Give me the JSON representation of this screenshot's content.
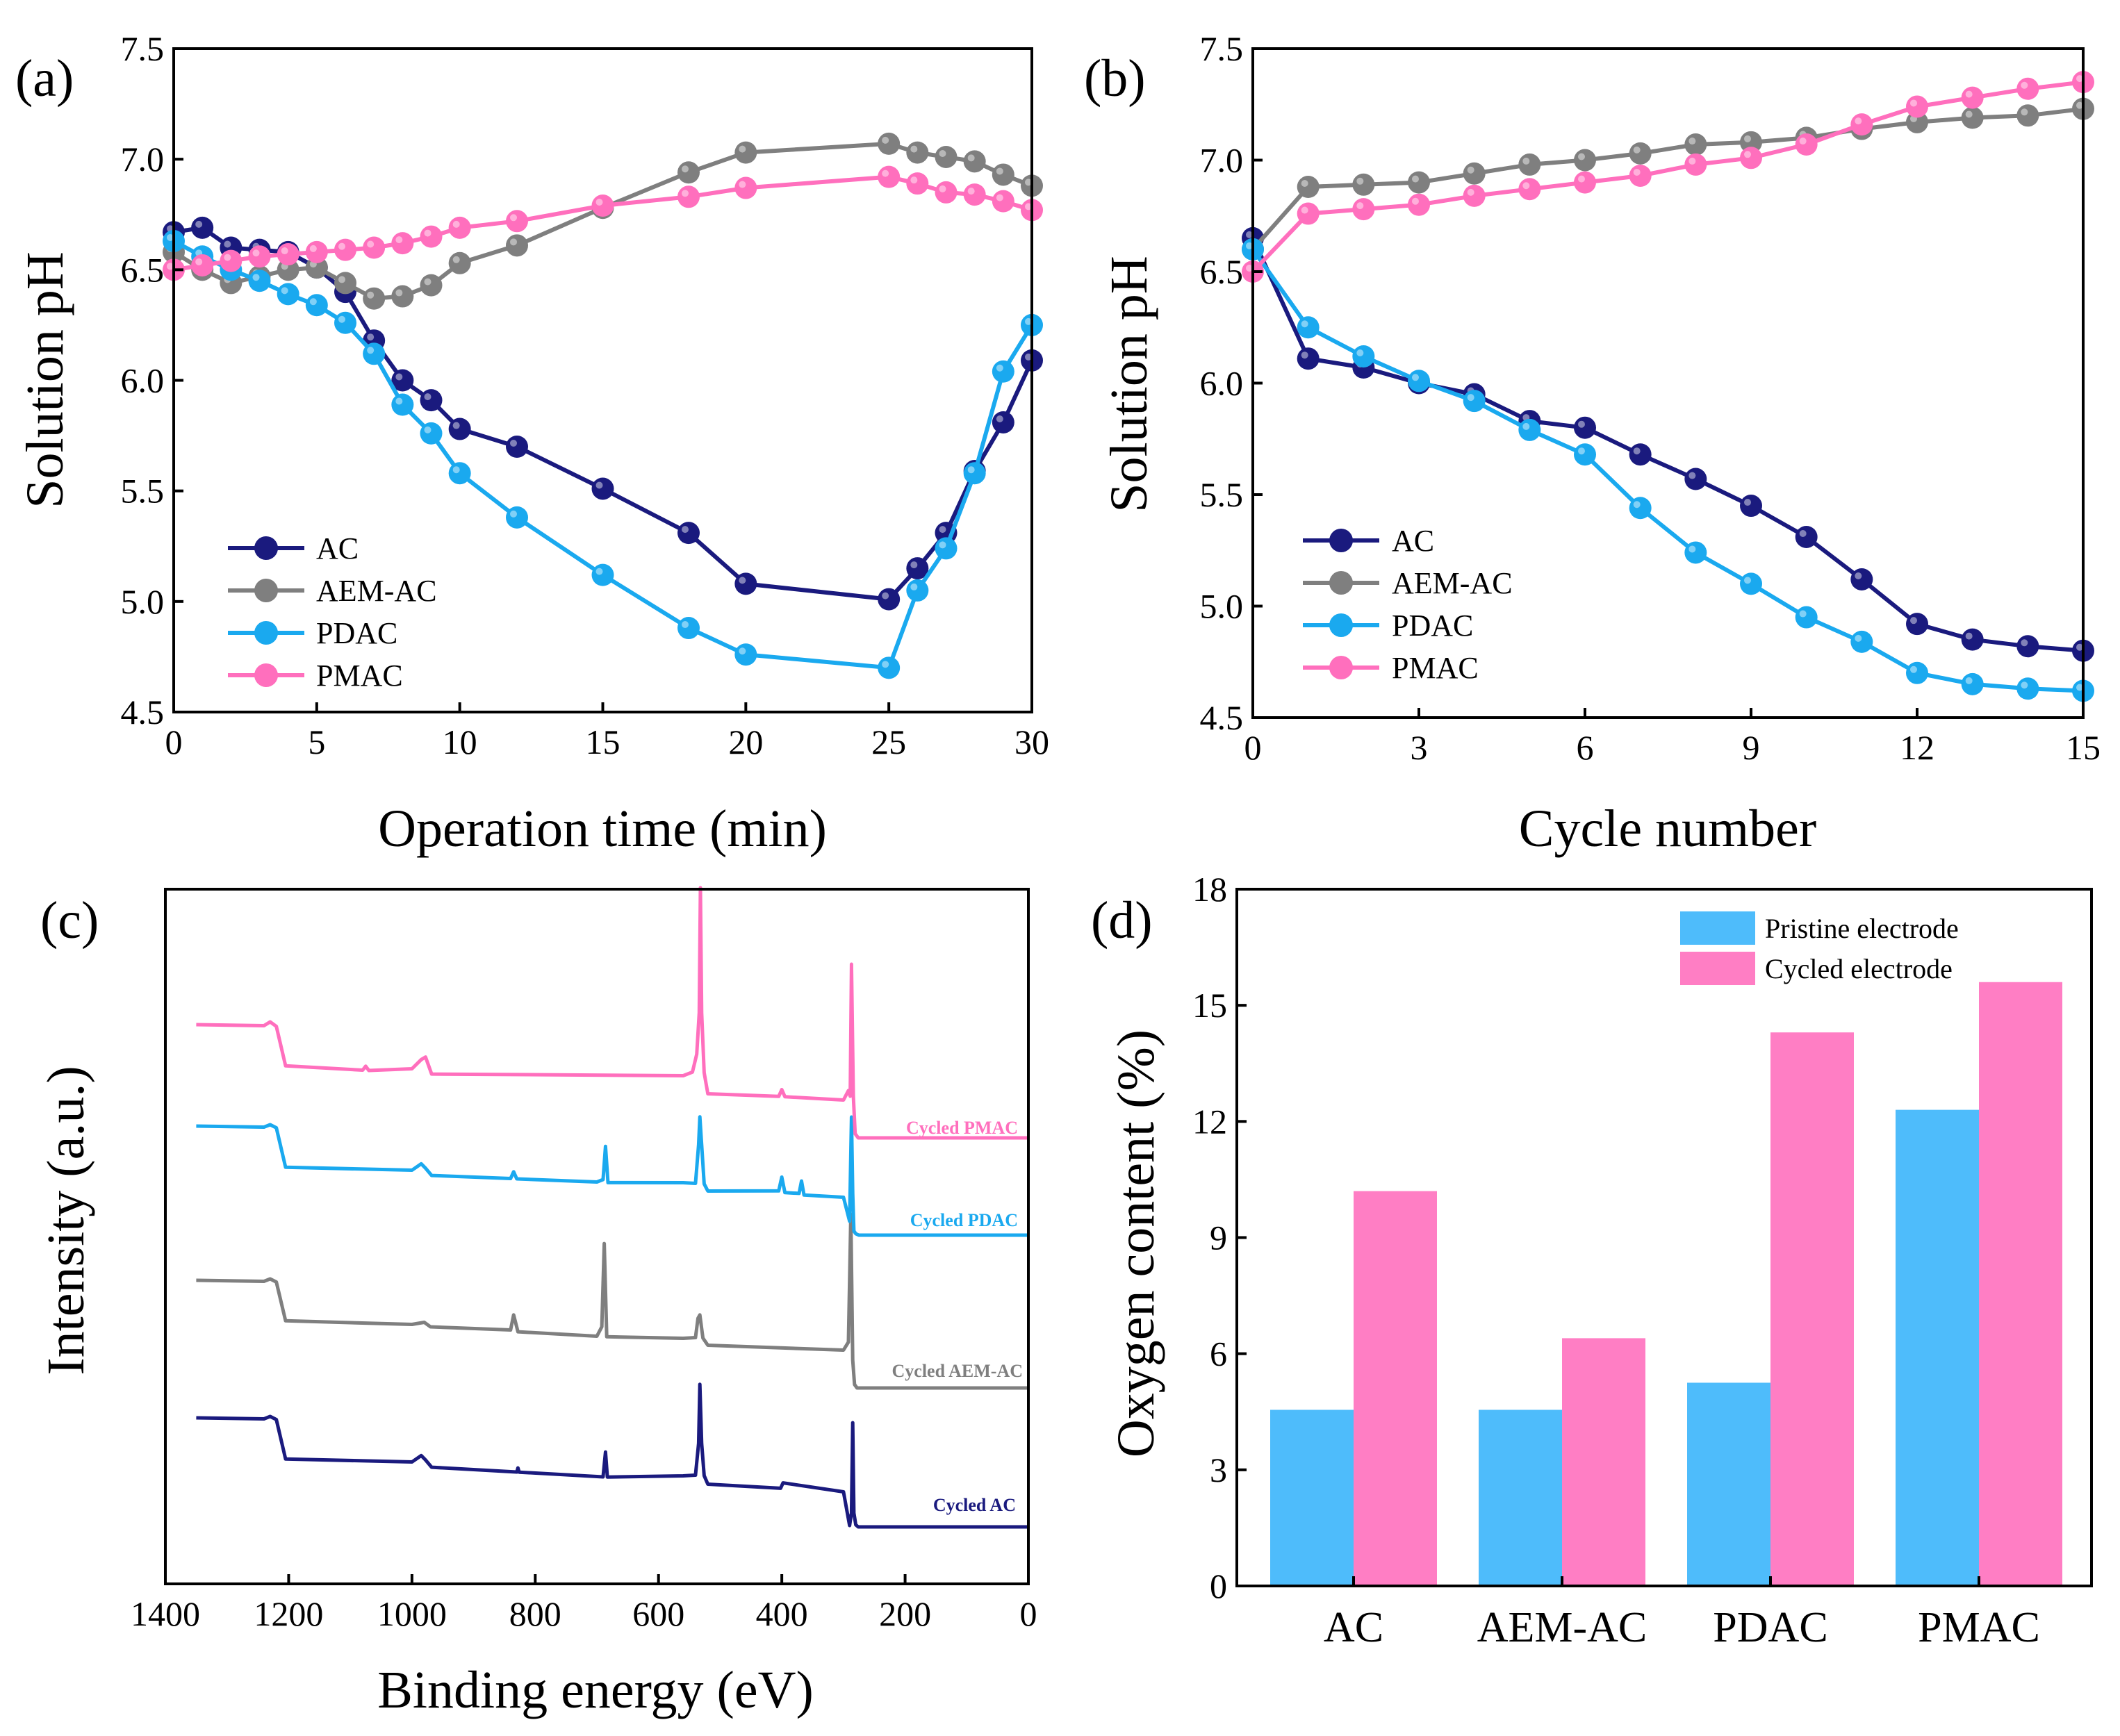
{
  "chart_data": [
    {
      "panel": "(a)",
      "type": "line",
      "xlabel": "Operation time (min)",
      "ylabel": "Solution pH",
      "xlim": [
        0,
        30
      ],
      "ylim": [
        4.5,
        7.5
      ],
      "xticks": [
        "0",
        "5",
        "10",
        "15",
        "20",
        "25",
        "30"
      ],
      "yticks": [
        "4.5",
        "5.0",
        "5.5",
        "6.0",
        "6.5",
        "7.0",
        "7.5"
      ],
      "legend_position": "bottom-left",
      "series": [
        {
          "name": "AC",
          "color": "#1a1a7e",
          "x": [
            0,
            1,
            2,
            3,
            4,
            5,
            6,
            7,
            8,
            9,
            10,
            12,
            15,
            18,
            20,
            25,
            26,
            27,
            28,
            29,
            30
          ],
          "y": [
            6.67,
            6.69,
            6.6,
            6.59,
            6.58,
            6.51,
            6.4,
            6.18,
            6.0,
            5.91,
            5.78,
            5.7,
            5.51,
            5.31,
            5.08,
            5.01,
            5.15,
            5.31,
            5.59,
            5.81,
            6.09
          ]
        },
        {
          "name": "AEM-AC",
          "color": "#7f7f7f",
          "x": [
            0,
            1,
            2,
            3,
            4,
            5,
            6,
            7,
            8,
            9,
            10,
            12,
            15,
            18,
            20,
            25,
            26,
            27,
            28,
            29,
            30
          ],
          "y": [
            6.58,
            6.5,
            6.44,
            6.47,
            6.5,
            6.51,
            6.44,
            6.37,
            6.38,
            6.43,
            6.53,
            6.61,
            6.78,
            6.94,
            7.03,
            7.07,
            7.03,
            7.01,
            6.99,
            6.93,
            6.88
          ]
        },
        {
          "name": "PDAC",
          "color": "#1aa9ef",
          "x": [
            0,
            1,
            2,
            3,
            4,
            5,
            6,
            7,
            8,
            9,
            10,
            12,
            15,
            18,
            20,
            25,
            26,
            27,
            28,
            29,
            30
          ],
          "y": [
            6.63,
            6.56,
            6.5,
            6.45,
            6.39,
            6.34,
            6.26,
            6.12,
            5.89,
            5.76,
            5.58,
            5.38,
            5.12,
            4.88,
            4.76,
            4.7,
            5.05,
            5.24,
            5.58,
            6.04,
            6.25
          ]
        },
        {
          "name": "PMAC",
          "color": "#ff6fbd",
          "x": [
            0,
            1,
            2,
            3,
            4,
            5,
            6,
            7,
            8,
            9,
            10,
            12,
            15,
            18,
            20,
            25,
            26,
            27,
            28,
            29,
            30
          ],
          "y": [
            6.5,
            6.52,
            6.54,
            6.56,
            6.57,
            6.58,
            6.59,
            6.6,
            6.62,
            6.65,
            6.69,
            6.72,
            6.79,
            6.83,
            6.87,
            6.92,
            6.89,
            6.85,
            6.84,
            6.81,
            6.77
          ]
        }
      ]
    },
    {
      "panel": "(b)",
      "type": "line",
      "xlabel": "Cycle number",
      "ylabel": "Solution pH",
      "xlim": [
        0,
        15
      ],
      "ylim": [
        4.5,
        7.5
      ],
      "xticks": [
        "0",
        "3",
        "6",
        "9",
        "12",
        "15"
      ],
      "yticks": [
        "4.5",
        "5.0",
        "5.5",
        "6.0",
        "6.5",
        "7.0",
        "7.5"
      ],
      "legend_position": "bottom-left",
      "series": [
        {
          "name": "AC",
          "color": "#1a1a7e",
          "x": [
            0,
            1,
            2,
            3,
            4,
            5,
            6,
            7,
            8,
            9,
            10,
            11,
            12,
            13,
            14,
            15
          ],
          "y": [
            6.65,
            6.11,
            6.07,
            6.0,
            5.95,
            5.83,
            5.8,
            5.68,
            5.57,
            5.45,
            5.31,
            5.12,
            4.92,
            4.85,
            4.82,
            4.8
          ]
        },
        {
          "name": "AEM-AC",
          "color": "#7f7f7f",
          "x": [
            0,
            1,
            2,
            3,
            4,
            5,
            6,
            7,
            8,
            9,
            10,
            11,
            12,
            13,
            14,
            15
          ],
          "y": [
            6.6,
            6.88,
            6.89,
            6.9,
            6.94,
            6.98,
            7.0,
            7.03,
            7.07,
            7.08,
            7.1,
            7.14,
            7.17,
            7.19,
            7.2,
            7.23
          ]
        },
        {
          "name": "PDAC",
          "color": "#1aa9ef",
          "x": [
            0,
            1,
            2,
            3,
            4,
            5,
            6,
            7,
            8,
            9,
            10,
            11,
            12,
            13,
            14,
            15
          ],
          "y": [
            6.6,
            6.25,
            6.12,
            6.01,
            5.92,
            5.79,
            5.68,
            5.44,
            5.24,
            5.1,
            4.95,
            4.84,
            4.7,
            4.65,
            4.63,
            4.62
          ]
        },
        {
          "name": "PMAC",
          "color": "#ff6fbd",
          "x": [
            0,
            1,
            2,
            3,
            4,
            5,
            6,
            7,
            8,
            9,
            10,
            11,
            12,
            13,
            14,
            15
          ],
          "y": [
            6.5,
            6.76,
            6.78,
            6.8,
            6.84,
            6.87,
            6.9,
            6.93,
            6.98,
            7.01,
            7.07,
            7.16,
            7.24,
            7.28,
            7.32,
            7.35
          ]
        }
      ]
    },
    {
      "panel": "(c)",
      "type": "line",
      "xlabel": "Binding energy (eV)",
      "ylabel": "Intensity (a.u.)",
      "xlim": [
        1400,
        0
      ],
      "xticks": [
        "1400",
        "1200",
        "1000",
        "800",
        "600",
        "400",
        "200",
        "0"
      ],
      "y_units": "arbitrary (stacked spectra, relative intensity)",
      "series": [
        {
          "name": "Cycled AC",
          "color": "#1a1a7e",
          "offset": 0,
          "x": [
            1350,
            1240,
            1230,
            1220,
            1205,
            1000,
            985,
            978,
            968,
            830,
            828,
            826,
            690,
            686,
            683,
            560,
            540,
            535,
            533,
            530,
            526,
            520,
            402,
            398,
            300,
            290,
            287,
            285,
            283,
            280,
            276,
            0
          ],
          "y": [
            14,
            18,
            22,
            18,
            4,
            10,
            20,
            14,
            4,
            4,
            10,
            4,
            4,
            40,
            4,
            12,
            14,
            60,
            145,
            60,
            14,
            2,
            2,
            10,
            2,
            2,
            20,
            150,
            20,
            3,
            0,
            0
          ]
        },
        {
          "name": "Cycled AEM-AC",
          "color": "#7f7f7f",
          "offset": 200,
          "x": [
            1350,
            1240,
            1230,
            1220,
            1205,
            1000,
            990,
            980,
            970,
            840,
            835,
            828,
            700,
            692,
            688,
            684,
            560,
            540,
            536,
            533,
            528,
            520,
            410,
            300,
            292,
            288,
            285,
            282,
            278,
            0
          ],
          "y": [
            12,
            16,
            20,
            16,
            3,
            8,
            10,
            12,
            6,
            8,
            30,
            6,
            6,
            20,
            140,
            6,
            10,
            12,
            40,
            45,
            12,
            2,
            4,
            6,
            18,
            250,
            40,
            5,
            0,
            0
          ]
        },
        {
          "name": "Cycled PDAC",
          "color": "#1aa9ef",
          "offset": 420,
          "x": [
            1350,
            1240,
            1230,
            1220,
            1205,
            1000,
            985,
            978,
            968,
            840,
            835,
            830,
            700,
            690,
            686,
            682,
            560,
            540,
            535,
            533,
            530,
            526,
            520,
            405,
            400,
            395,
            372,
            368,
            364,
            300,
            290,
            287,
            285,
            283,
            280,
            275,
            0
          ],
          "y": [
            14,
            18,
            22,
            18,
            4,
            10,
            20,
            14,
            4,
            6,
            16,
            6,
            8,
            12,
            60,
            8,
            14,
            14,
            70,
            110,
            70,
            14,
            4,
            10,
            30,
            8,
            8,
            26,
            6,
            6,
            20,
            170,
            60,
            6,
            2,
            0,
            0
          ]
        },
        {
          "name": "Cycled PMAC",
          "color": "#ff6fbd",
          "offset": 560,
          "x": [
            1350,
            1240,
            1230,
            1220,
            1205,
            1080,
            1075,
            1070,
            1000,
            985,
            978,
            968,
            560,
            545,
            538,
            534,
            532,
            530,
            526,
            520,
            405,
            400,
            395,
            300,
            292,
            289,
            287,
            284,
            281,
            276,
            0
          ],
          "y": [
            20,
            24,
            30,
            24,
            10,
            10,
            16,
            10,
            16,
            30,
            34,
            10,
            28,
            34,
            60,
            120,
            300,
            120,
            34,
            4,
            6,
            16,
            6,
            6,
            20,
            60,
            250,
            60,
            6,
            0,
            0
          ]
        }
      ]
    },
    {
      "panel": "(d)",
      "type": "bar",
      "xlabel": "",
      "ylabel": "Oxygen content (%)",
      "ylim": [
        0,
        18
      ],
      "yticks": [
        "0",
        "3",
        "6",
        "9",
        "12",
        "15",
        "18"
      ],
      "categories": [
        "AC",
        "AEM-AC",
        "PDAC",
        "PMAC"
      ],
      "legend_position": "top-right",
      "series": [
        {
          "name": "Pristine electrode",
          "color": "#4ebcfb",
          "values": [
            4.55,
            4.55,
            5.25,
            12.3
          ]
        },
        {
          "name": "Cycled electrode",
          "color": "#ff7ec4",
          "values": [
            10.2,
            6.4,
            14.3,
            15.6
          ]
        }
      ]
    }
  ]
}
